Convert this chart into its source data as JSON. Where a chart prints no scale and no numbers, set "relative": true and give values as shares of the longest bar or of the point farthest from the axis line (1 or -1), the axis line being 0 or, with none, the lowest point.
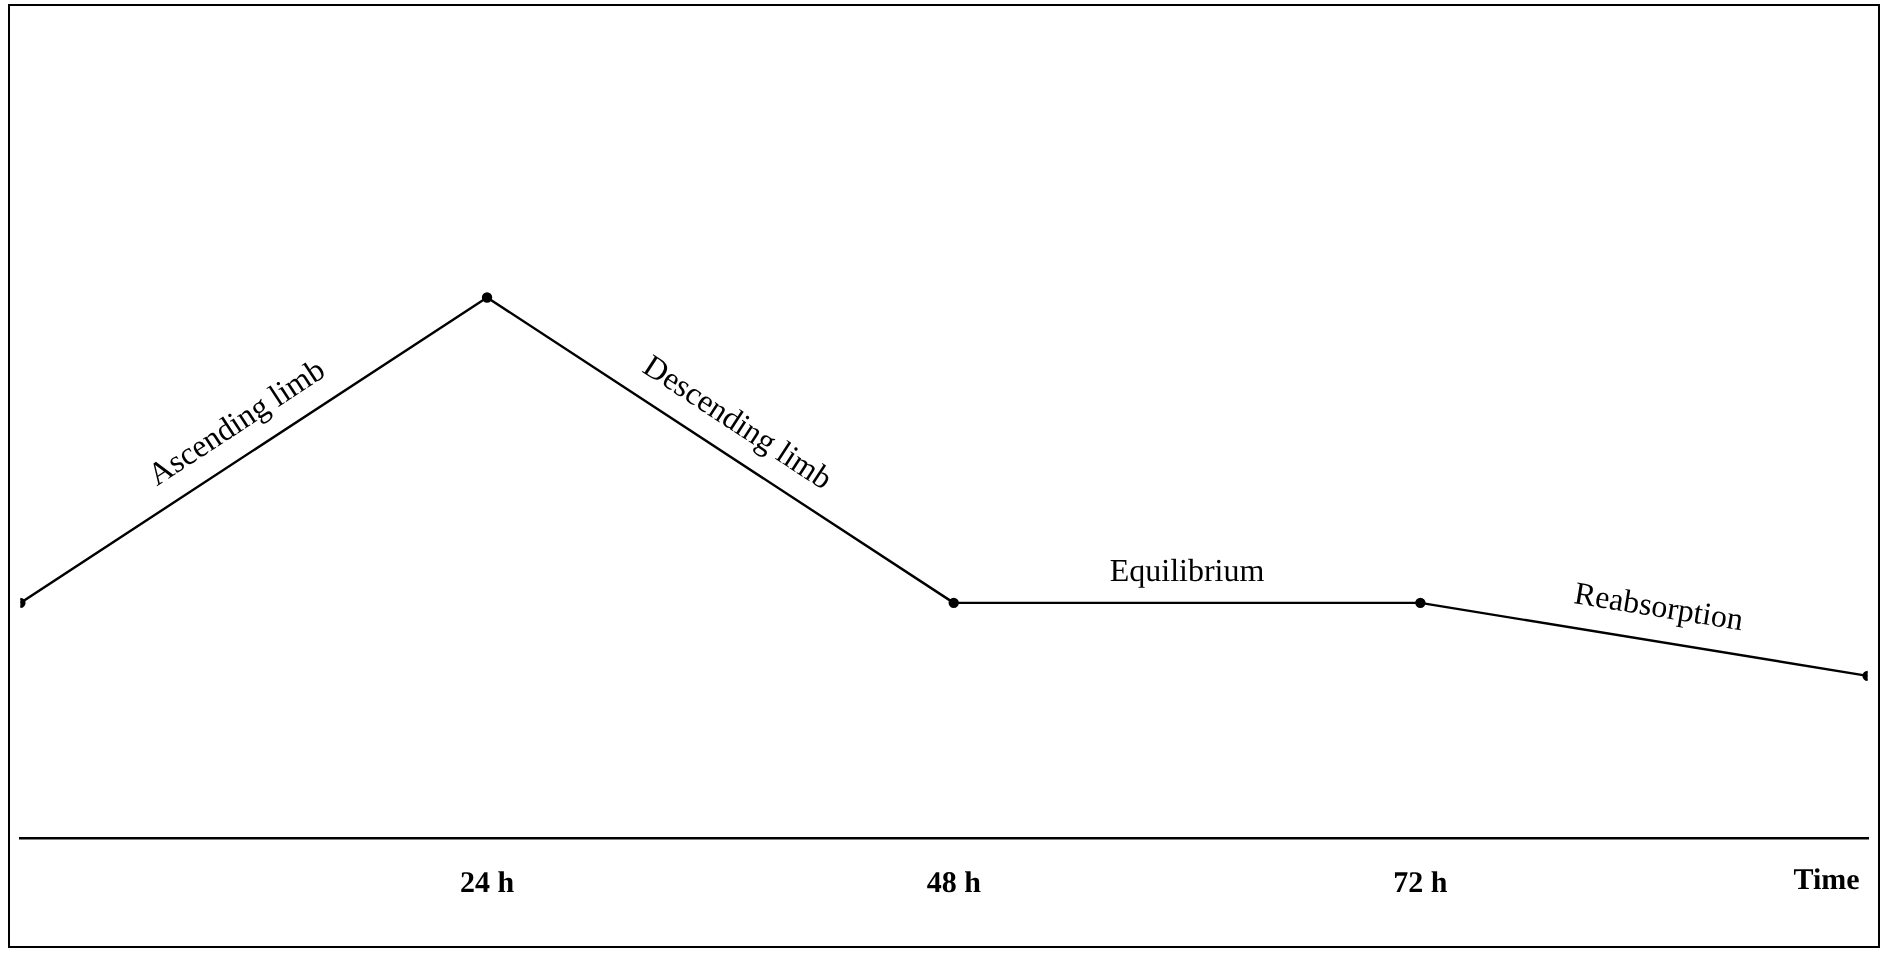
{
  "chart_data": {
    "type": "line",
    "relative": true,
    "xlabel": "Time",
    "x": [
      0,
      24,
      48,
      72,
      95
    ],
    "values": [
      0.435,
      1,
      0.435,
      0.435,
      0.3
    ],
    "color": "#000000",
    "marker": "circle",
    "line_style": "solid",
    "grid": false,
    "legend": false,
    "xlim": [
      0,
      95
    ],
    "xticks": [
      {
        "value": 24,
        "label": "24 h"
      },
      {
        "value": 48,
        "label": "48 h"
      },
      {
        "value": 72,
        "label": "72 h"
      }
    ],
    "annotations": [
      {
        "text": "Ascending limb",
        "x": 12,
        "y": 0.72
      },
      {
        "text": "Descending limb",
        "x": 36,
        "y": 0.72
      },
      {
        "text": "Equilibrium",
        "x": 60,
        "y": 0.435
      },
      {
        "text": "Reabsorption",
        "x": 84,
        "y": 0.37
      }
    ]
  }
}
